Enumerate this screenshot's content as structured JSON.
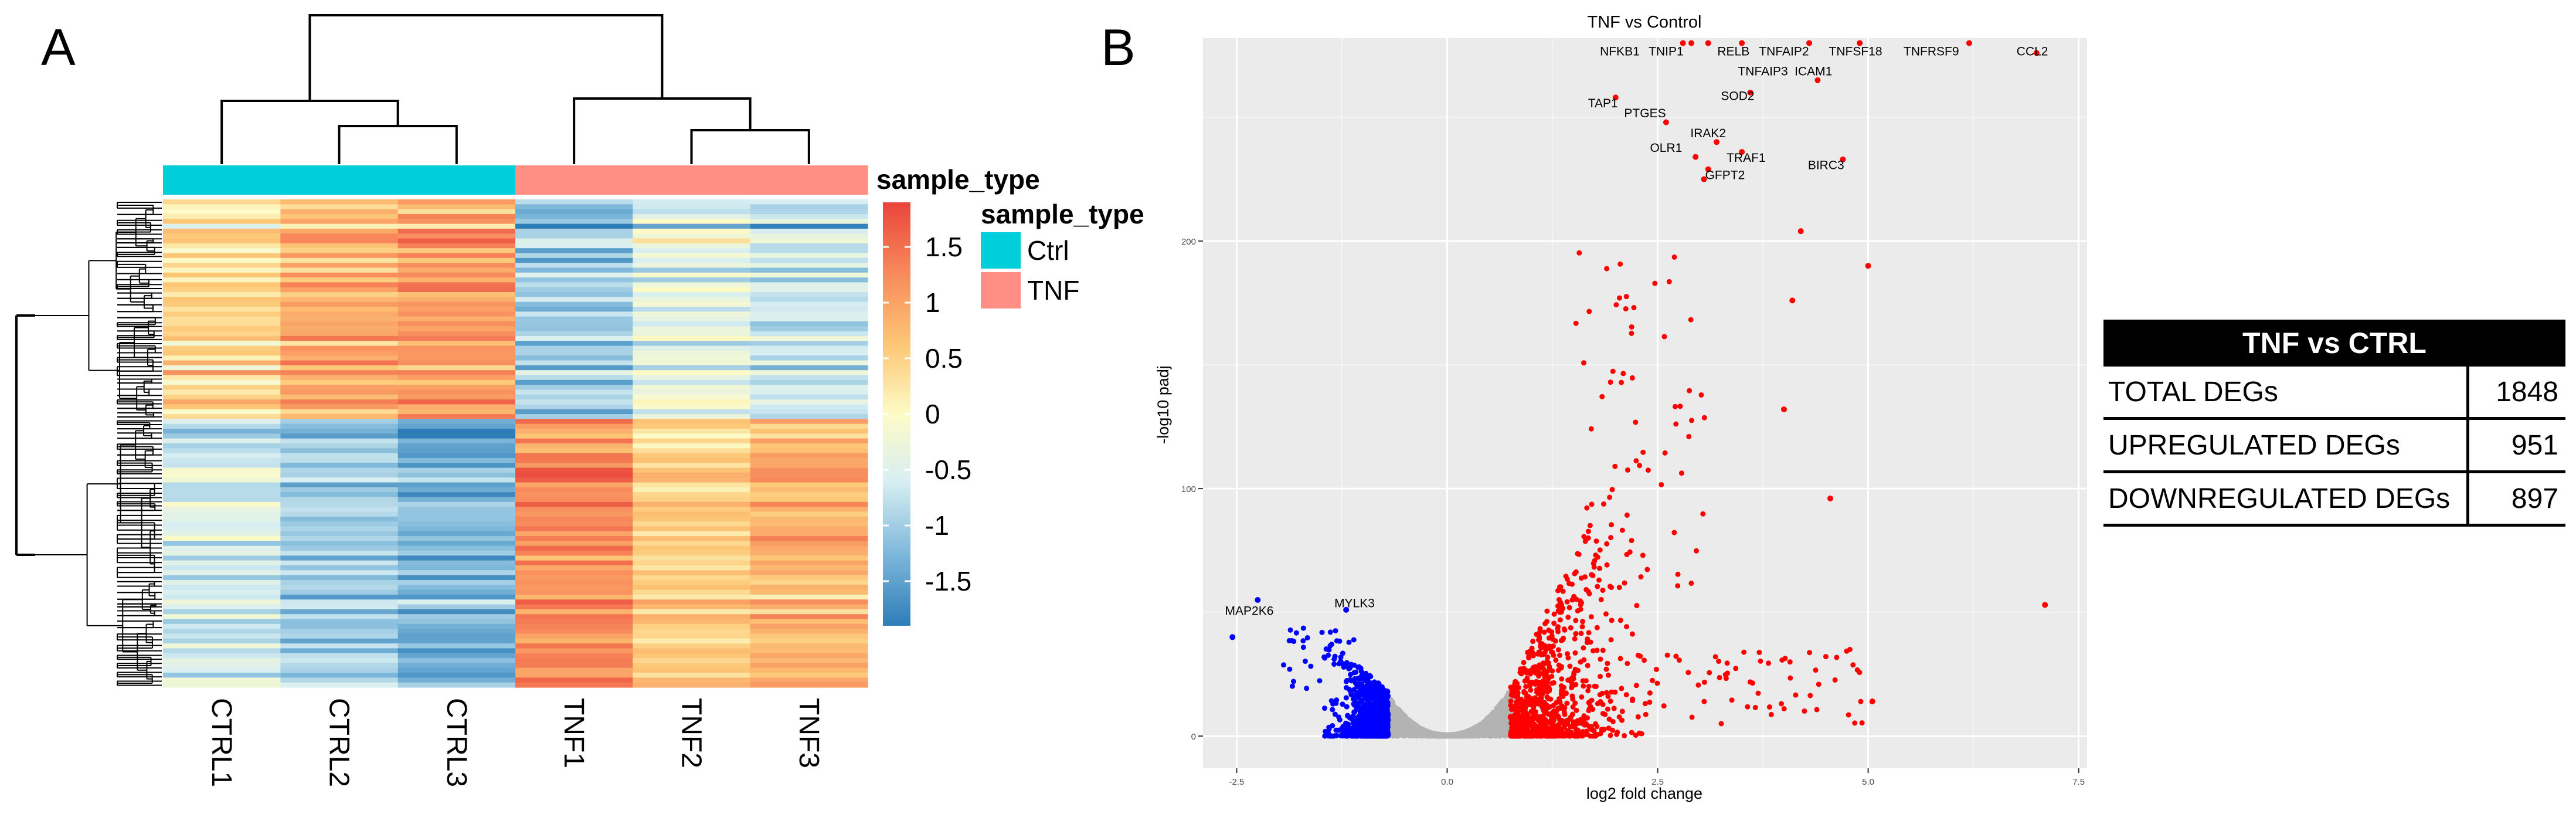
{
  "panels": {
    "a": "A",
    "b": "B"
  },
  "heatmap": {
    "annotation_title": "sample_type",
    "legend_title": "sample_type",
    "samples": [
      "CTRL1",
      "CTRL2",
      "CTRL3",
      "TNF1",
      "TNF2",
      "TNF3"
    ],
    "sample_groups": [
      "Ctrl",
      "Ctrl",
      "Ctrl",
      "TNF",
      "TNF",
      "TNF"
    ],
    "groups": [
      {
        "name": "Ctrl",
        "color": "#00CED9"
      },
      {
        "name": "TNF",
        "color": "#FF8F85"
      }
    ],
    "colorbar": {
      "range": [
        -1.9,
        1.9
      ],
      "ticks": [
        {
          "value": 1.5,
          "label": "1.5"
        },
        {
          "value": 1,
          "label": "1"
        },
        {
          "value": 0.5,
          "label": "0.5"
        },
        {
          "value": 0,
          "label": "0"
        },
        {
          "value": -0.5,
          "label": "-0.5"
        },
        {
          "value": -1,
          "label": "-1"
        },
        {
          "value": -1.5,
          "label": "-1.5"
        }
      ],
      "colors": [
        "#2D7DB9",
        "#7EB8DA",
        "#D7EEF2",
        "#FDFBC7",
        "#FDC877",
        "#F88B5C",
        "#E9453A"
      ]
    },
    "row_clusters": [
      {
        "rows": 45,
        "values": [
          0.4,
          0.9,
          1.1,
          -1.1,
          -0.4,
          -0.7
        ]
      },
      {
        "rows": 55,
        "values": [
          -0.6,
          -1.0,
          -1.3,
          1.3,
          0.6,
          0.9
        ]
      }
    ]
  },
  "volcano": {
    "title": "TNF vs Control",
    "xlabel": "log2 fold change",
    "ylabel": "-log10 padj",
    "xlim": [
      -2.9,
      7.6
    ],
    "ylim": [
      -13,
      282
    ],
    "xticks": [
      {
        "value": -2.5,
        "label": "-2.5"
      },
      {
        "value": 0,
        "label": "0.0"
      },
      {
        "value": 2.5,
        "label": "2.5"
      },
      {
        "value": 5,
        "label": "5.0"
      },
      {
        "value": 7.5,
        "label": "7.5"
      }
    ],
    "yticks": [
      {
        "value": 0,
        "label": "0"
      },
      {
        "value": 100,
        "label": "100"
      },
      {
        "value": 200,
        "label": "200"
      }
    ],
    "colors": {
      "up": "#FF0000",
      "down": "#0000FF",
      "ns": "#B3B3B3",
      "panel": "#EBEBEB"
    },
    "labels": [
      {
        "text": "NFKB1",
        "x": 2.05,
        "y": 275
      },
      {
        "text": "TNIP1",
        "x": 2.6,
        "y": 275
      },
      {
        "text": "RELB",
        "x": 3.4,
        "y": 275
      },
      {
        "text": "TNFAIP2",
        "x": 4.0,
        "y": 275
      },
      {
        "text": "TNFSF18",
        "x": 4.85,
        "y": 275
      },
      {
        "text": "TNFRSF9",
        "x": 5.75,
        "y": 275
      },
      {
        "text": "CCL2",
        "x": 6.95,
        "y": 275
      },
      {
        "text": "TNFAIP3",
        "x": 3.75,
        "y": 267
      },
      {
        "text": "ICAM1",
        "x": 4.35,
        "y": 267
      },
      {
        "text": "SOD2",
        "x": 3.45,
        "y": 257
      },
      {
        "text": "TAP1",
        "x": 1.85,
        "y": 254
      },
      {
        "text": "PTGES",
        "x": 2.35,
        "y": 250
      },
      {
        "text": "IRAK2",
        "x": 3.1,
        "y": 242
      },
      {
        "text": "OLR1",
        "x": 2.6,
        "y": 236
      },
      {
        "text": "TRAF1",
        "x": 3.55,
        "y": 232
      },
      {
        "text": "BIRC3",
        "x": 4.5,
        "y": 229
      },
      {
        "text": "GFPT2",
        "x": 3.3,
        "y": 225
      },
      {
        "text": "MAP2K6",
        "x": -2.35,
        "y": 49
      },
      {
        "text": "MYLK3",
        "x": -1.1,
        "y": 52
      }
    ],
    "highlight_points": [
      {
        "x": -2.25,
        "y": 55
      },
      {
        "x": -2.55,
        "y": 40
      },
      {
        "x": -1.2,
        "y": 51
      },
      {
        "x": 7.0,
        "y": 276
      },
      {
        "x": 4.4,
        "y": 265
      },
      {
        "x": 3.6,
        "y": 260
      },
      {
        "x": 2.0,
        "y": 258
      },
      {
        "x": 2.6,
        "y": 248
      },
      {
        "x": 3.2,
        "y": 240
      },
      {
        "x": 2.95,
        "y": 234
      },
      {
        "x": 3.5,
        "y": 236
      },
      {
        "x": 4.7,
        "y": 233
      },
      {
        "x": 3.1,
        "y": 229
      },
      {
        "x": 3.05,
        "y": 225
      },
      {
        "x": 5.0,
        "y": 190
      },
      {
        "x": 4.2,
        "y": 204
      },
      {
        "x": 4.1,
        "y": 176
      },
      {
        "x": 4.0,
        "y": 132
      },
      {
        "x": 4.55,
        "y": 96
      },
      {
        "x": 7.1,
        "y": 53
      },
      {
        "x": 5.05,
        "y": 14
      }
    ],
    "random_seed": 7
  },
  "deg_table": {
    "title": "TNF vs CTRL",
    "rows": [
      {
        "label": "TOTAL  DEGs",
        "value": "1848"
      },
      {
        "label": "UPREGULATED  DEGs",
        "value": "951"
      },
      {
        "label": "DOWNREGULATED  DEGs",
        "value": "897"
      }
    ]
  }
}
